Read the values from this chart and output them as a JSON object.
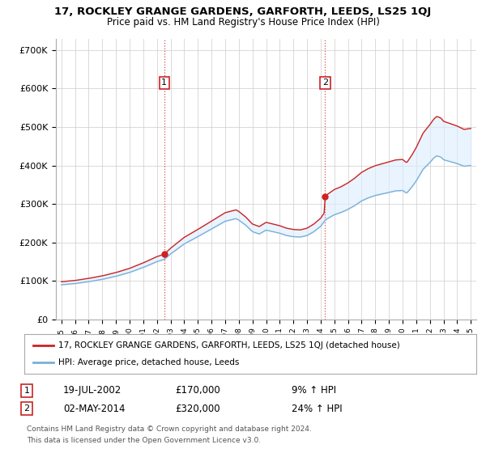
{
  "title": "17, ROCKLEY GRANGE GARDENS, GARFORTH, LEEDS, LS25 1QJ",
  "subtitle": "Price paid vs. HM Land Registry's House Price Index (HPI)",
  "hpi_label": "HPI: Average price, detached house, Leeds",
  "property_label": "17, ROCKLEY GRANGE GARDENS, GARFORTH, LEEDS, LS25 1QJ (detached house)",
  "sale1_date": "19-JUL-2002",
  "sale1_price": 170000,
  "sale1_hpi": "9% ↑ HPI",
  "sale2_date": "02-MAY-2014",
  "sale2_price": 320000,
  "sale2_hpi": "24% ↑ HPI",
  "footnote1": "Contains HM Land Registry data © Crown copyright and database right 2024.",
  "footnote2": "This data is licensed under the Open Government Licence v3.0.",
  "hpi_color": "#7ab0d4",
  "hpi_fill_color": "#ddeeff",
  "property_color": "#cc2222",
  "vline_color": "#cc2222",
  "marker_color": "#cc2222",
  "background_color": "#ffffff",
  "grid_color": "#cccccc",
  "ylim": [
    0,
    730000
  ],
  "yticks": [
    0,
    100000,
    200000,
    300000,
    400000,
    500000,
    600000,
    700000
  ],
  "ytick_labels": [
    "£0",
    "£100K",
    "£200K",
    "£300K",
    "£400K",
    "£500K",
    "£600K",
    "£700K"
  ],
  "sale1_year_float": 2002.54,
  "sale2_year_float": 2014.33
}
